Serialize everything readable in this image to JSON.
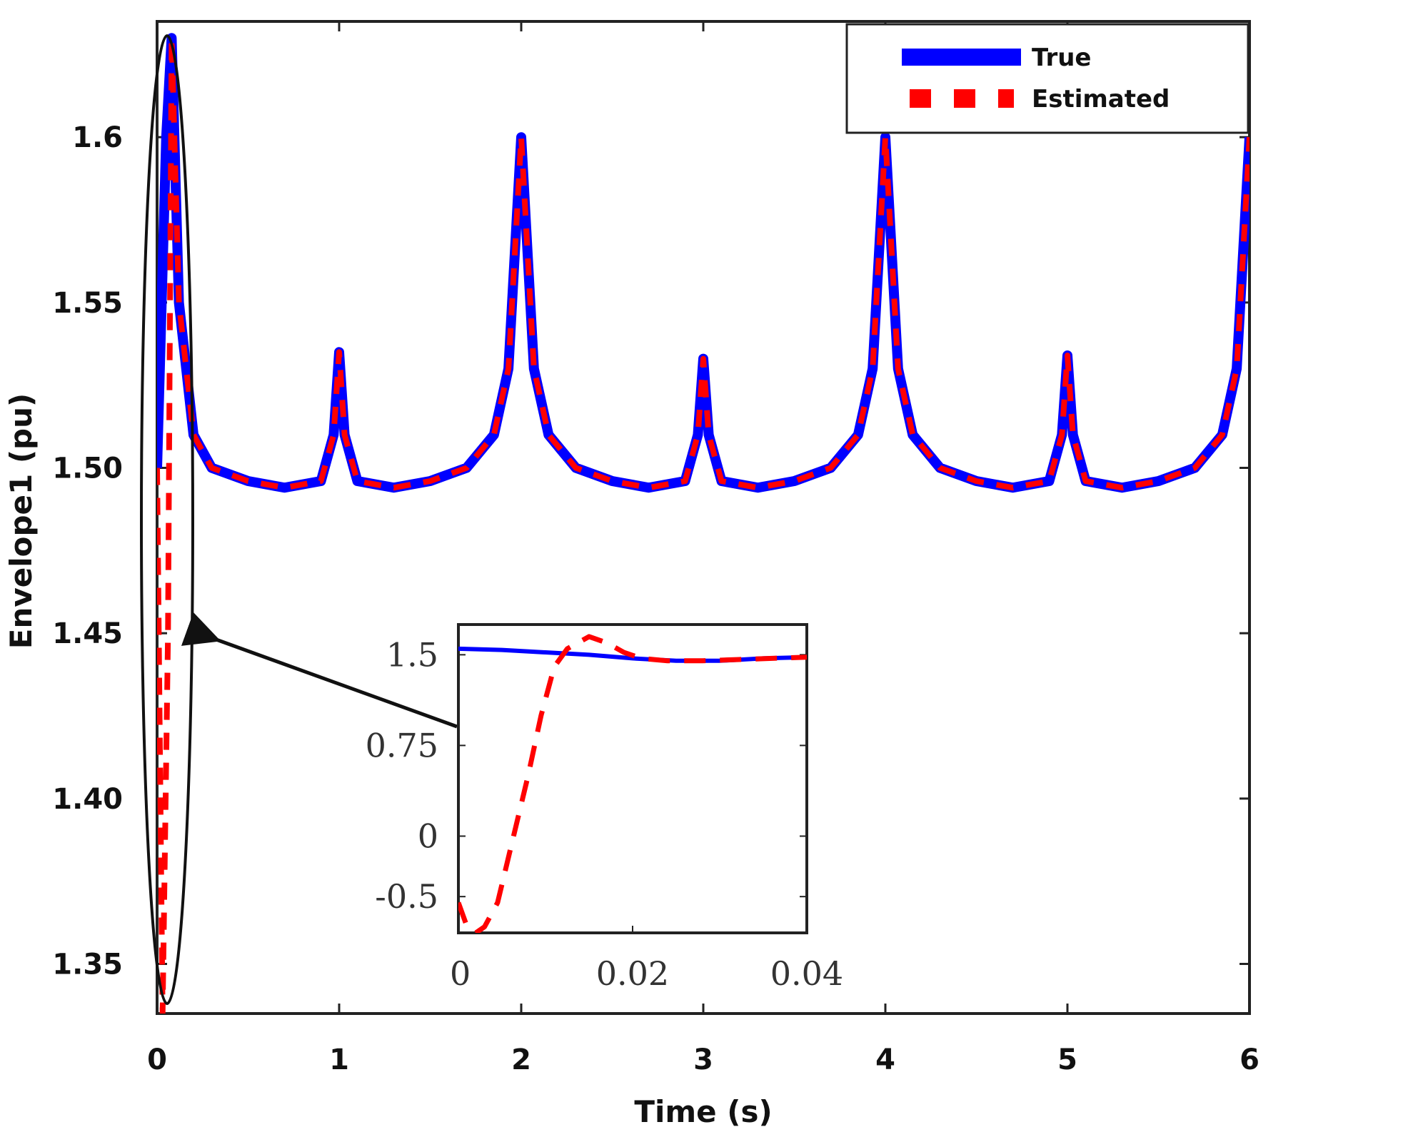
{
  "chart_data": [
    {
      "type": "line",
      "title": "",
      "xlabel": "Time (s)",
      "ylabel": "Envelope1 (pu)",
      "xlim": [
        0,
        6
      ],
      "ylim": [
        1.335,
        1.635
      ],
      "xticks": [
        0,
        1,
        2,
        3,
        4,
        5,
        6
      ],
      "xtick_labels": [
        "0",
        "1",
        "2",
        "3",
        "4",
        "5",
        "6"
      ],
      "yticks": [
        1.35,
        1.4,
        1.45,
        1.5,
        1.55,
        1.6
      ],
      "ytick_labels": [
        "1.35",
        "1.40",
        "1.45",
        "1.50",
        "1.55",
        "1.6"
      ],
      "legend": [
        "True",
        "Estimated"
      ],
      "legend_position": "top-right",
      "colors": {
        "true": "#0000ff",
        "estimated": "#ff0000",
        "axes": "#222222",
        "annotation": "#111111"
      },
      "series": [
        {
          "name": "True",
          "x": [
            0,
            0.05,
            0.08,
            0.12,
            0.2,
            0.3,
            0.5,
            0.7,
            0.9,
            0.97,
            1.0,
            1.03,
            1.1,
            1.3,
            1.5,
            1.7,
            1.85,
            1.93,
            2.0,
            2.07,
            2.15,
            2.3,
            2.5,
            2.7,
            2.9,
            2.97,
            3.0,
            3.03,
            3.1,
            3.3,
            3.5,
            3.7,
            3.85,
            3.93,
            4.0,
            4.07,
            4.15,
            4.3,
            4.5,
            4.7,
            4.9,
            4.97,
            5.0,
            5.03,
            5.1,
            5.3,
            5.5,
            5.7,
            5.85,
            5.93,
            6.0
          ],
          "values": [
            1.5,
            1.6,
            1.63,
            1.55,
            1.51,
            1.5,
            1.496,
            1.494,
            1.496,
            1.51,
            1.535,
            1.51,
            1.496,
            1.494,
            1.496,
            1.5,
            1.51,
            1.53,
            1.6,
            1.53,
            1.51,
            1.5,
            1.496,
            1.494,
            1.496,
            1.51,
            1.533,
            1.51,
            1.496,
            1.494,
            1.496,
            1.5,
            1.51,
            1.53,
            1.6,
            1.53,
            1.51,
            1.5,
            1.496,
            1.494,
            1.496,
            1.51,
            1.534,
            1.51,
            1.496,
            1.494,
            1.496,
            1.5,
            1.51,
            1.53,
            1.6
          ]
        },
        {
          "name": "Estimated",
          "x": [
            0,
            0.03,
            0.06,
            0.08,
            0.12,
            0.2,
            0.3,
            0.5,
            0.7,
            0.9,
            0.97,
            1.0,
            1.03,
            1.1,
            1.3,
            1.5,
            1.7,
            1.85,
            1.93,
            2.0,
            2.07,
            2.15,
            2.3,
            2.5,
            2.7,
            2.9,
            2.97,
            3.0,
            3.03,
            3.1,
            3.3,
            3.5,
            3.7,
            3.85,
            3.93,
            4.0,
            4.07,
            4.15,
            4.3,
            4.5,
            4.7,
            4.9,
            4.97,
            5.0,
            5.03,
            5.1,
            5.3,
            5.5,
            5.7,
            5.85,
            5.93,
            6.0
          ],
          "values": [
            1.5,
            1.335,
            1.45,
            1.63,
            1.55,
            1.51,
            1.5,
            1.496,
            1.494,
            1.496,
            1.51,
            1.535,
            1.51,
            1.496,
            1.494,
            1.496,
            1.5,
            1.51,
            1.53,
            1.6,
            1.53,
            1.51,
            1.5,
            1.496,
            1.494,
            1.496,
            1.51,
            1.533,
            1.51,
            1.496,
            1.494,
            1.496,
            1.5,
            1.51,
            1.53,
            1.6,
            1.53,
            1.51,
            1.5,
            1.496,
            1.494,
            1.496,
            1.51,
            1.534,
            1.51,
            1.496,
            1.494,
            1.496,
            1.5,
            1.51,
            1.53,
            1.6
          ]
        }
      ]
    },
    {
      "type": "line",
      "title": "",
      "xlabel": "",
      "ylabel": "",
      "xlim": [
        0,
        0.04
      ],
      "ylim": [
        -0.8,
        1.75
      ],
      "xticks": [
        0,
        0.02,
        0.04
      ],
      "xtick_labels": [
        "0",
        "0.02",
        "0.04"
      ],
      "yticks": [
        -0.5,
        0,
        0.75,
        1.5
      ],
      "ytick_labels": [
        "-0.5",
        "0",
        "0.75",
        "1.5"
      ],
      "series": [
        {
          "name": "True",
          "x": [
            0,
            0.005,
            0.01,
            0.015,
            0.02,
            0.025,
            0.03,
            0.035,
            0.04
          ],
          "values": [
            1.55,
            1.54,
            1.52,
            1.5,
            1.47,
            1.45,
            1.45,
            1.47,
            1.48
          ]
        },
        {
          "name": "Estimated",
          "x": [
            0,
            0.001,
            0.002,
            0.003,
            0.0045,
            0.006,
            0.008,
            0.0095,
            0.011,
            0.0125,
            0.015,
            0.017,
            0.019,
            0.021,
            0.024,
            0.028,
            0.032,
            0.036,
            0.04
          ],
          "values": [
            -0.55,
            -0.75,
            -0.8,
            -0.75,
            -0.55,
            -0.1,
            0.5,
            1.0,
            1.4,
            1.55,
            1.65,
            1.6,
            1.52,
            1.47,
            1.45,
            1.45,
            1.46,
            1.47,
            1.48
          ]
        }
      ]
    }
  ],
  "legend_labels": {
    "true": "True",
    "estimated": "Estimated"
  }
}
